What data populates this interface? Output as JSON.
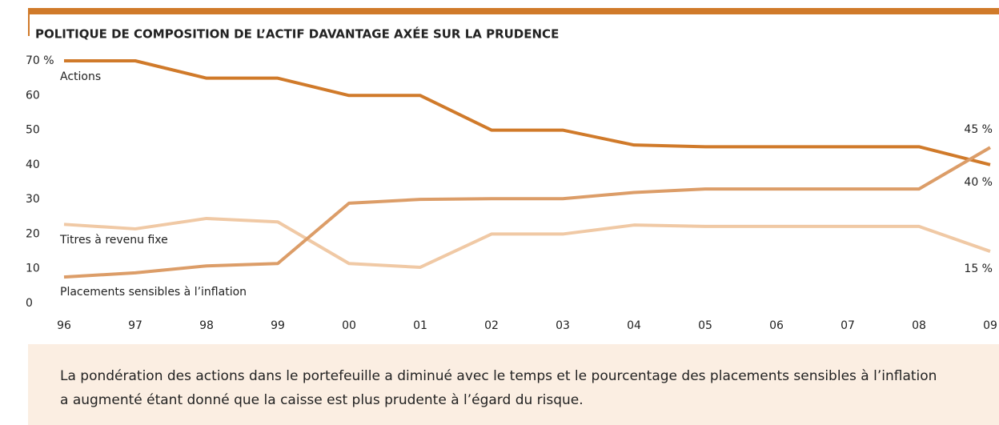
{
  "chart_data": {
    "type": "line",
    "title": "POLITIQUE DE COMPOSITION DE L’ACTIF DAVANTAGE AXÉE SUR LA PRUDENCE",
    "categories": [
      "96",
      "97",
      "98",
      "99",
      "00",
      "01",
      "02",
      "03",
      "04",
      "05",
      "06",
      "07",
      "08",
      "09"
    ],
    "ylim": [
      0,
      70
    ],
    "yticks": [
      0,
      10,
      20,
      30,
      40,
      50,
      60,
      {
        "value": 70,
        "label": "70 %"
      }
    ],
    "grid": false,
    "series": [
      {
        "name": "Actions",
        "color": "#d07a2a",
        "values": [
          70,
          70,
          65,
          65,
          60,
          60,
          50,
          50,
          45.7,
          45.2,
          45.2,
          45.2,
          45.2,
          40
        ],
        "value_labels": [
          null,
          null,
          null,
          null,
          null,
          null,
          null,
          null,
          null,
          null,
          null,
          null,
          null,
          "40 %"
        ]
      },
      {
        "name": "Titres à revenu fixe",
        "color": "#f0c9a5",
        "values": [
          22.8,
          21.5,
          24.5,
          23.5,
          11.5,
          10.4,
          20,
          20,
          22.6,
          22.2,
          22.2,
          22.2,
          22.2,
          15
        ],
        "value_labels": [
          null,
          null,
          null,
          null,
          null,
          null,
          null,
          null,
          null,
          null,
          null,
          null,
          null,
          "15 %"
        ]
      },
      {
        "name": "Placements sensibles à l’inflation",
        "color": "#dc9d68",
        "values": [
          7.6,
          8.8,
          10.8,
          11.5,
          28.9,
          30,
          30.2,
          30.2,
          32,
          33,
          33,
          33,
          33,
          45
        ],
        "value_labels": [
          null,
          null,
          null,
          null,
          null,
          null,
          null,
          null,
          null,
          null,
          null,
          null,
          null,
          "45 %"
        ]
      }
    ],
    "note": "La pondération des actions dans le portefeuille a diminué avec le temps et le pourcentage des placements sensibles à l’inflation a augmenté étant donné que la caisse est plus prudente à l’égard du risque."
  }
}
